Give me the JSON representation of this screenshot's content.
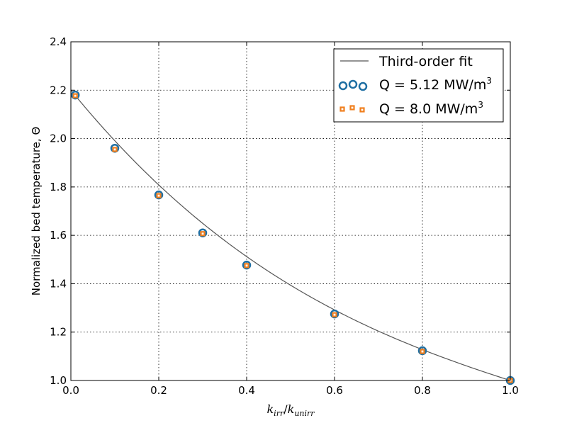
{
  "chart_data": {
    "type": "scatter",
    "xlabel": "k_irr/k_unirr",
    "xlabel_parts": {
      "base1": "k",
      "sub1": "irr",
      "slash": "/",
      "base2": "k",
      "sub2": "unirr"
    },
    "ylabel": "Normalized bed temperature, Θ",
    "xlim": [
      0.0,
      1.0
    ],
    "ylim": [
      1.0,
      2.4
    ],
    "xticks": [
      "0.0",
      "0.2",
      "0.4",
      "0.6",
      "0.8",
      "1.0"
    ],
    "yticks": [
      "1.0",
      "1.2",
      "1.4",
      "1.6",
      "1.8",
      "2.0",
      "2.2",
      "2.4"
    ],
    "grid": true,
    "legend_position": "top-right",
    "fit": {
      "name": "Third-order fit",
      "color": "#555555",
      "coefficients": [
        2.2,
        -2.23,
        1.44,
        -0.41
      ]
    },
    "series": [
      {
        "name": "Q = 5.12 MW/m",
        "name_sup": "3",
        "marker": "circle",
        "color": "#1f6fa3",
        "x": [
          0.01,
          0.1,
          0.2,
          0.3,
          0.4,
          0.6,
          0.8,
          1.0
        ],
        "y": [
          2.18,
          1.96,
          1.767,
          1.61,
          1.477,
          1.275,
          1.123,
          1.0
        ]
      },
      {
        "name": "Q = 8.0 MW/m",
        "name_sup": "3",
        "marker": "square",
        "color": "#f07f1e",
        "x": [
          0.01,
          0.1,
          0.2,
          0.3,
          0.4,
          0.6,
          0.8,
          1.0
        ],
        "y": [
          2.177,
          1.955,
          1.764,
          1.607,
          1.475,
          1.272,
          1.12,
          1.0
        ]
      }
    ]
  }
}
